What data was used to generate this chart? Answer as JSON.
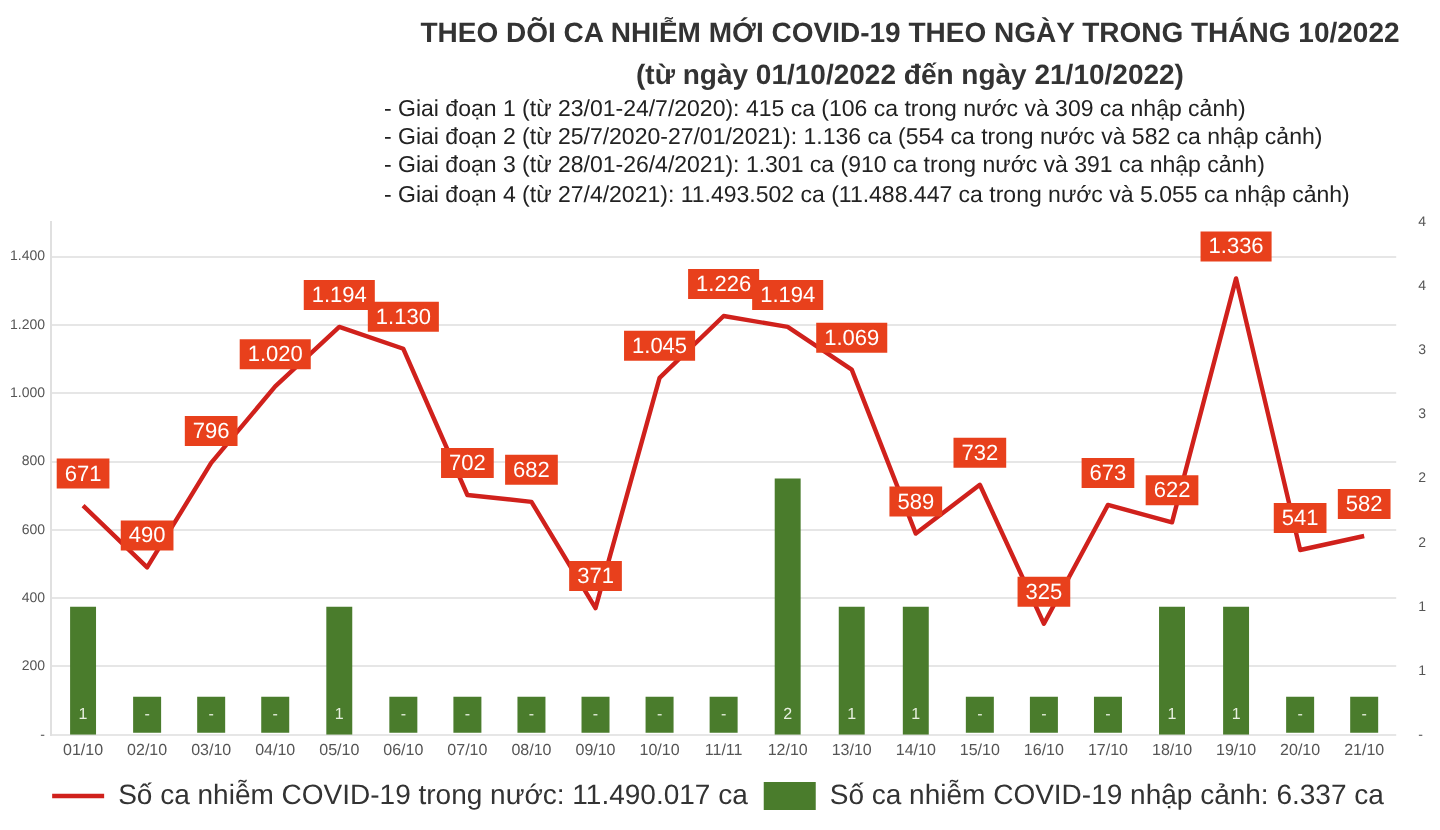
{
  "chart_data": {
    "type": "bar",
    "title": "THEO DÕI CA NHIỄM MỚI COVID-19 THEO NGÀY TRONG THÁNG 10/2022",
    "subtitle": "(từ ngày 01/10/2022 đến ngày 21/10/2022)",
    "annotations": [
      "- Giai đoạn 1 (từ 23/01-24/7/2020): 415 ca (106 ca trong nước và 309 ca nhập cảnh)",
      "- Giai đoạn 2 (từ 25/7/2020-27/01/2021): 1.136 ca (554 ca trong nước và 582 ca nhập cảnh)",
      "- Giai đoạn 3 (từ 28/01-26/4/2021): 1.301 ca (910 ca trong nước và 391 ca nhập cảnh)",
      "- Giai đoạn 4 (từ 27/4/2021): 11.493.502 ca (11.488.447 ca trong nước và 5.055 ca nhập cảnh)"
    ],
    "categories": [
      "01/10",
      "02/10",
      "03/10",
      "04/10",
      "05/10",
      "06/10",
      "07/10",
      "08/10",
      "09/10",
      "10/10",
      "11/11",
      "12/10",
      "13/10",
      "14/10",
      "15/10",
      "16/10",
      "17/10",
      "18/10",
      "19/10",
      "20/10",
      "21/10"
    ],
    "series": [
      {
        "name": "Số ca nhiễm COVID-19 nhập cảnh: 6.337 ca",
        "axis": "y2",
        "color": "#4a7c2c",
        "values": [
          1,
          0,
          0,
          0,
          1,
          0,
          0,
          0,
          0,
          0,
          0,
          2,
          1,
          1,
          0,
          0,
          0,
          1,
          1,
          0,
          0
        ],
        "value_labels": [
          "1",
          "-",
          "-",
          "-",
          "1",
          "-",
          "-",
          "-",
          "-",
          "-",
          "-",
          "2",
          "1",
          "1",
          "-",
          "-",
          "-",
          "1",
          "1",
          "-",
          "-"
        ]
      },
      {
        "name": "Số ca nhiễm COVID-19 trong nước: 11.490.017 ca",
        "type": "line",
        "color": "#d0211c",
        "values": [
          671,
          490,
          796,
          1020,
          1194,
          1130,
          702,
          682,
          371,
          1045,
          1226,
          1194,
          1069,
          589,
          732,
          325,
          673,
          622,
          1336,
          541,
          582
        ],
        "value_labels": [
          "671",
          "490",
          "796",
          "1.020",
          "1.194",
          "1.130",
          "702",
          "682",
          "371",
          "1.045",
          "1.226",
          "1.194",
          "1.069",
          "589",
          "732",
          "325",
          "673",
          "622",
          "1.336",
          "541",
          "582"
        ]
      }
    ],
    "ylim": [
      0,
      1500
    ],
    "yticks": [
      {
        "value": 0,
        "label": "-"
      },
      {
        "value": 200,
        "label": "200"
      },
      {
        "value": 400,
        "label": "400"
      },
      {
        "value": 600,
        "label": "600"
      },
      {
        "value": 800,
        "label": "800"
      },
      {
        "value": 1000,
        "label": "1.000"
      },
      {
        "value": 1200,
        "label": "1.200"
      },
      {
        "value": 1400,
        "label": "1.400"
      }
    ],
    "y2lim": [
      0,
      4
    ],
    "y2ticks": [
      {
        "value": 0,
        "label": "-"
      },
      {
        "value": 0.5,
        "label": "1"
      },
      {
        "value": 1,
        "label": "1"
      },
      {
        "value": 1.5,
        "label": "2"
      },
      {
        "value": 2,
        "label": "2"
      },
      {
        "value": 2.5,
        "label": "3"
      },
      {
        "value": 3,
        "label": "3"
      },
      {
        "value": 3.5,
        "label": "4"
      },
      {
        "value": 4,
        "label": "4"
      }
    ],
    "grid": "y",
    "legend": "bottom",
    "marker": "none",
    "line_style": "solid"
  }
}
